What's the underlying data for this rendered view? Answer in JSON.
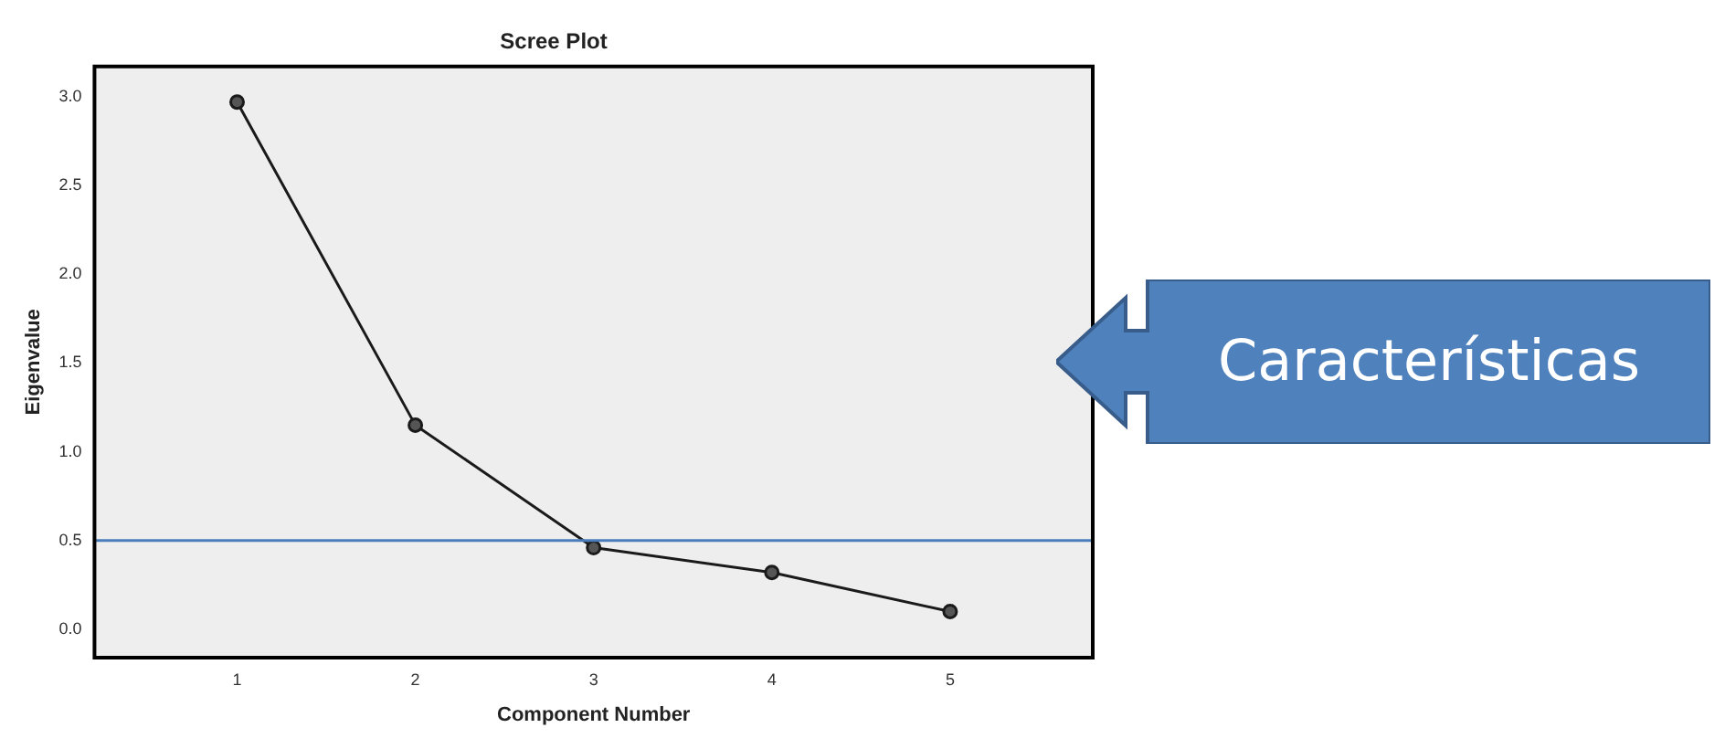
{
  "chart_data": {
    "type": "line",
    "title": "Scree Plot",
    "xlabel": "Component Number",
    "ylabel": "Eigenvalue",
    "x": [
      1,
      2,
      3,
      4,
      5
    ],
    "series": [
      {
        "color": "#1a1a1a",
        "values": [
          2.97,
          1.15,
          0.46,
          0.32,
          0.1
        ]
      }
    ],
    "xlim": [
      0.2,
      5.8
    ],
    "xticks": [
      1,
      2,
      3,
      4,
      5
    ],
    "ylim": [
      -0.16,
      3.17
    ],
    "yticks": [
      {
        "value": 0,
        "label": "0.0"
      },
      {
        "value": 0.5,
        "label": "0.5"
      },
      {
        "value": 1,
        "label": "1.0"
      },
      {
        "value": 1.5,
        "label": "1.5"
      },
      {
        "value": 2,
        "label": "2.0"
      },
      {
        "value": 2.5,
        "label": "2.5"
      },
      {
        "value": 3,
        "label": "3.0"
      }
    ],
    "ref_lines": [
      {
        "axis": "y",
        "value": 0.5,
        "color": "#4a7ebb"
      }
    ],
    "annotations": [
      "Características"
    ],
    "marker": "circle",
    "grid": false,
    "legend": false
  }
}
